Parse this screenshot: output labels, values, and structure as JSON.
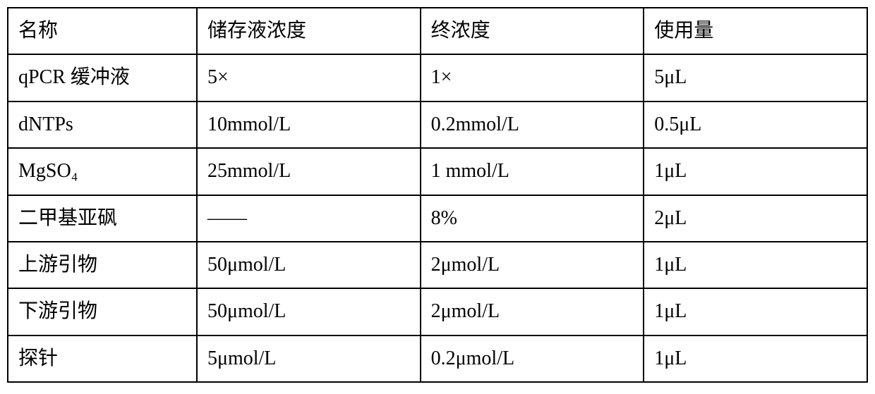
{
  "table": {
    "type": "table",
    "border_color": "#000000",
    "border_width": 2,
    "background_color": "#ffffff",
    "font_family": "SimSun / Times New Roman",
    "font_size_pt": 21,
    "text_color": "#000000",
    "column_widths_pct": [
      22,
      26,
      26,
      26
    ],
    "columns": [
      "名称",
      "储存液浓度",
      "终浓度",
      "使用量"
    ],
    "rows": [
      {
        "name": "qPCR 缓冲液",
        "stock": "5×",
        "final": "1×",
        "amount": "5μL"
      },
      {
        "name": "dNTPs",
        "stock": "10mmol/L",
        "final": "0.2mmol/L",
        "amount": "0.5μL"
      },
      {
        "name": "MgSO₄",
        "stock": "25mmol/L",
        "final": "1 mmol/L",
        "amount": "1μL"
      },
      {
        "name": "二甲基亚砜",
        "stock": "——",
        "final": "8%",
        "amount": "2μL"
      },
      {
        "name": "上游引物",
        "stock": "50μmol/L",
        "final": "2μmol/L",
        "amount": "1μL"
      },
      {
        "name": "下游引物",
        "stock": "50μmol/L",
        "final": "2μmol/L",
        "amount": "1μL"
      },
      {
        "name": "探针",
        "stock": "5μmol/L",
        "final": "0.2μmol/L",
        "amount": "1μL"
      }
    ]
  }
}
